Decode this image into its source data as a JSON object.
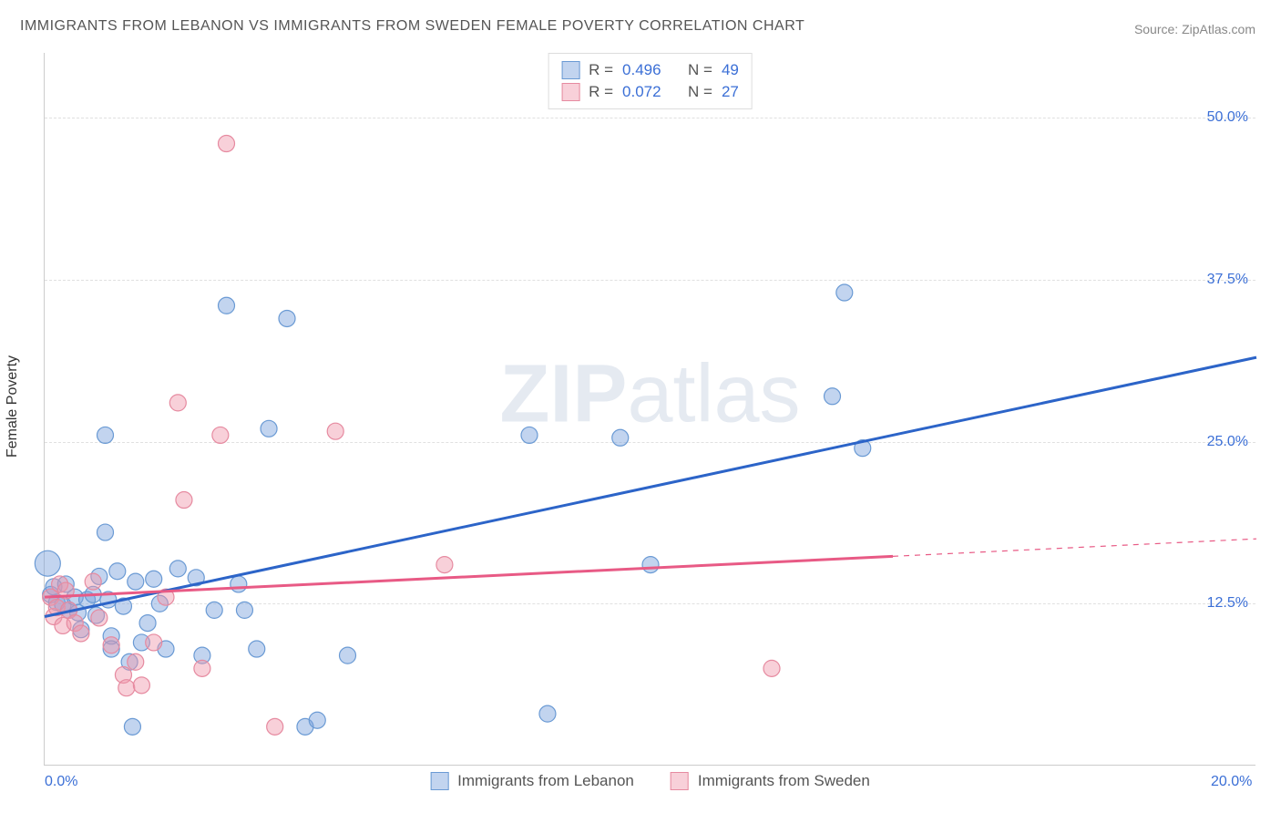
{
  "title": "IMMIGRANTS FROM LEBANON VS IMMIGRANTS FROM SWEDEN FEMALE POVERTY CORRELATION CHART",
  "source_label": "Source:",
  "source_value": "ZipAtlas.com",
  "watermark_zip": "ZIP",
  "watermark_atlas": "atlas",
  "ylabel": "Female Poverty",
  "chart": {
    "type": "scatter",
    "xlim": [
      0,
      20
    ],
    "ylim": [
      0,
      55
    ],
    "x_ticks": [
      {
        "v": 0,
        "label": "0.0%"
      },
      {
        "v": 20,
        "label": "20.0%"
      }
    ],
    "y_ticks": [
      {
        "v": 12.5,
        "label": "12.5%"
      },
      {
        "v": 25,
        "label": "25.0%"
      },
      {
        "v": 37.5,
        "label": "37.5%"
      },
      {
        "v": 50,
        "label": "50.0%"
      }
    ],
    "background_color": "#ffffff",
    "grid_color": "#e0e0e0",
    "axis_color": "#cccccc",
    "tick_label_color": "#3b6fd6",
    "tick_fontsize": 16,
    "title_fontsize": 16,
    "title_color": "#555555",
    "marker_radius": 9,
    "marker_radius_big": 14,
    "marker_opacity": 0.55,
    "marker_stroke_width": 1.2,
    "line_width_solid": 3,
    "line_width_dash": 1.2,
    "series": [
      {
        "name": "Immigrants from Lebanon",
        "color_fill": "rgba(120,160,220,0.45)",
        "color_stroke": "#6a9ad4",
        "line_color": "#2c64c8",
        "R": "0.496",
        "N": "49",
        "trend": {
          "x1": 0,
          "y1": 11.5,
          "x2": 20,
          "y2": 31.5,
          "solid_to_x": 20
        },
        "points": [
          {
            "x": 0.05,
            "y": 15.6,
            "big": true
          },
          {
            "x": 0.1,
            "y": 13.2
          },
          {
            "x": 0.2,
            "y": 12.6
          },
          {
            "x": 0.15,
            "y": 13.8
          },
          {
            "x": 0.3,
            "y": 12.4
          },
          {
            "x": 0.35,
            "y": 14.0
          },
          {
            "x": 0.4,
            "y": 12.0
          },
          {
            "x": 0.5,
            "y": 13.0
          },
          {
            "x": 0.55,
            "y": 11.8
          },
          {
            "x": 0.6,
            "y": 10.5
          },
          {
            "x": 0.7,
            "y": 12.8
          },
          {
            "x": 0.8,
            "y": 13.2
          },
          {
            "x": 0.85,
            "y": 11.6
          },
          {
            "x": 0.9,
            "y": 14.6
          },
          {
            "x": 1.0,
            "y": 25.5
          },
          {
            "x": 1.0,
            "y": 18.0
          },
          {
            "x": 1.05,
            "y": 12.8
          },
          {
            "x": 1.1,
            "y": 10.0
          },
          {
            "x": 1.1,
            "y": 9.0
          },
          {
            "x": 1.2,
            "y": 15.0
          },
          {
            "x": 1.3,
            "y": 12.3
          },
          {
            "x": 1.4,
            "y": 8.0
          },
          {
            "x": 1.45,
            "y": 3.0
          },
          {
            "x": 1.5,
            "y": 14.2
          },
          {
            "x": 1.6,
            "y": 9.5
          },
          {
            "x": 1.7,
            "y": 11.0
          },
          {
            "x": 1.8,
            "y": 14.4
          },
          {
            "x": 1.9,
            "y": 12.5
          },
          {
            "x": 2.0,
            "y": 9.0
          },
          {
            "x": 2.2,
            "y": 15.2
          },
          {
            "x": 2.5,
            "y": 14.5
          },
          {
            "x": 2.6,
            "y": 8.5
          },
          {
            "x": 2.8,
            "y": 12.0
          },
          {
            "x": 3.0,
            "y": 35.5
          },
          {
            "x": 3.2,
            "y": 14.0
          },
          {
            "x": 3.3,
            "y": 12.0
          },
          {
            "x": 3.5,
            "y": 9.0
          },
          {
            "x": 3.7,
            "y": 26.0
          },
          {
            "x": 4.0,
            "y": 34.5
          },
          {
            "x": 4.3,
            "y": 3.0
          },
          {
            "x": 4.5,
            "y": 3.5
          },
          {
            "x": 5.0,
            "y": 8.5
          },
          {
            "x": 8.0,
            "y": 25.5
          },
          {
            "x": 8.3,
            "y": 4.0
          },
          {
            "x": 9.5,
            "y": 25.3
          },
          {
            "x": 10.0,
            "y": 15.5
          },
          {
            "x": 13.0,
            "y": 28.5
          },
          {
            "x": 13.2,
            "y": 36.5
          },
          {
            "x": 13.5,
            "y": 24.5
          }
        ]
      },
      {
        "name": "Immigrants from Sweden",
        "color_fill": "rgba(240,150,170,0.45)",
        "color_stroke": "#e68aa0",
        "line_color": "#e85a85",
        "R": "0.072",
        "N": "27",
        "trend": {
          "x1": 0,
          "y1": 13.0,
          "x2": 20,
          "y2": 17.5,
          "solid_to_x": 14
        },
        "points": [
          {
            "x": 0.1,
            "y": 13.0
          },
          {
            "x": 0.15,
            "y": 11.5
          },
          {
            "x": 0.2,
            "y": 12.2
          },
          {
            "x": 0.25,
            "y": 14.0
          },
          {
            "x": 0.3,
            "y": 10.8
          },
          {
            "x": 0.35,
            "y": 13.5
          },
          {
            "x": 0.4,
            "y": 12.0
          },
          {
            "x": 0.5,
            "y": 11.0
          },
          {
            "x": 0.6,
            "y": 10.2
          },
          {
            "x": 0.8,
            "y": 14.2
          },
          {
            "x": 0.9,
            "y": 11.4
          },
          {
            "x": 1.1,
            "y": 9.3
          },
          {
            "x": 1.3,
            "y": 7.0
          },
          {
            "x": 1.35,
            "y": 6.0
          },
          {
            "x": 1.5,
            "y": 8.0
          },
          {
            "x": 1.6,
            "y": 6.2
          },
          {
            "x": 1.8,
            "y": 9.5
          },
          {
            "x": 2.0,
            "y": 13.0
          },
          {
            "x": 2.2,
            "y": 28.0
          },
          {
            "x": 2.3,
            "y": 20.5
          },
          {
            "x": 2.6,
            "y": 7.5
          },
          {
            "x": 2.9,
            "y": 25.5
          },
          {
            "x": 3.0,
            "y": 48.0
          },
          {
            "x": 3.8,
            "y": 3.0
          },
          {
            "x": 4.8,
            "y": 25.8
          },
          {
            "x": 6.6,
            "y": 15.5
          },
          {
            "x": 12.0,
            "y": 7.5
          }
        ]
      }
    ]
  },
  "stats_box": {
    "R_label": "R =",
    "N_label": "N ="
  },
  "bottom_legend_items": [
    {
      "label": "Immigrants from Lebanon"
    },
    {
      "label": "Immigrants from Sweden"
    }
  ]
}
